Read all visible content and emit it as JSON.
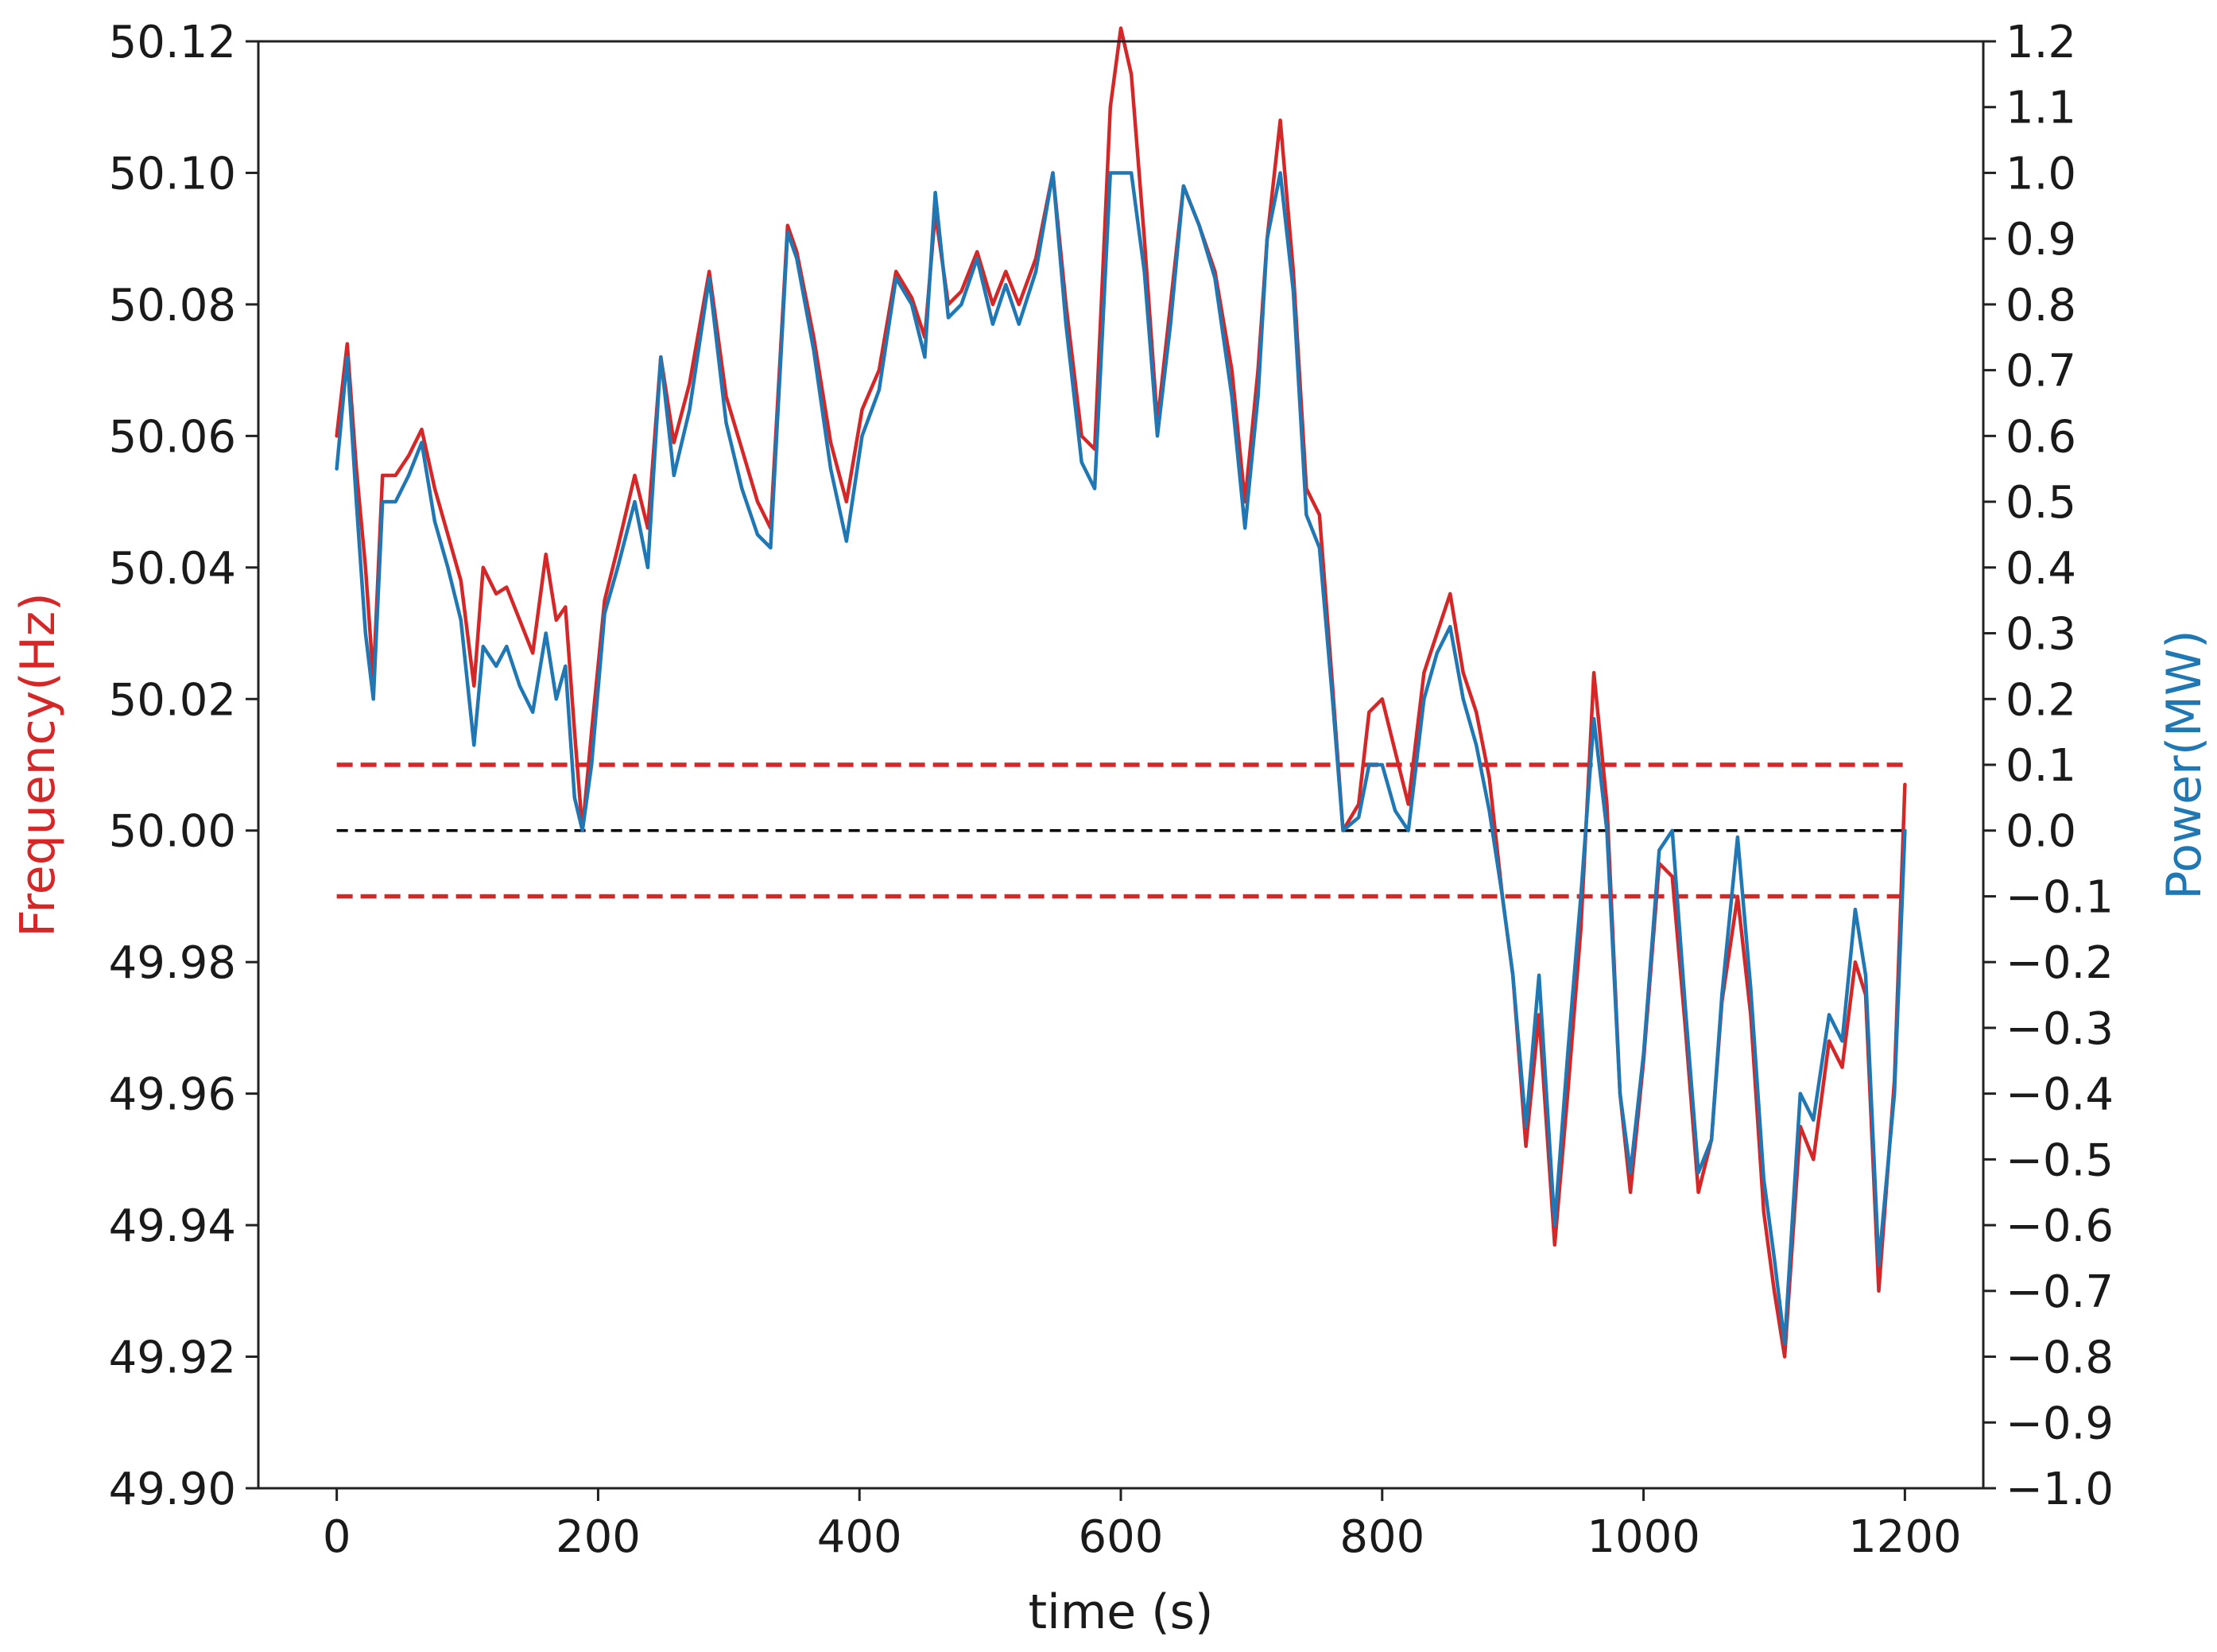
{
  "chart_data": {
    "type": "line",
    "xlabel": "time (s)",
    "ylabel_left": "Frequency(Hz)",
    "ylabel_right": "Power(MW)",
    "xlim": [
      -60,
      1260
    ],
    "ylim_left": [
      49.9,
      50.12
    ],
    "ylim_right": [
      -1.0,
      1.2
    ],
    "x_ticks": [
      "0",
      "200",
      "400",
      "600",
      "800",
      "1000",
      "1200"
    ],
    "y_left_ticks": [
      "49.90",
      "49.92",
      "49.94",
      "49.96",
      "49.98",
      "50.00",
      "50.02",
      "50.04",
      "50.06",
      "50.08",
      "50.10",
      "50.12"
    ],
    "y_right_ticks": [
      "−1.0",
      "−0.9",
      "−0.8",
      "−0.7",
      "−0.6",
      "−0.5",
      "−0.4",
      "−0.3",
      "−0.2",
      "−0.1",
      "0.0",
      "0.1",
      "0.2",
      "0.3",
      "0.4",
      "0.5",
      "0.6",
      "0.7",
      "0.8",
      "0.9",
      "1.0",
      "1.1",
      "1.2"
    ],
    "grid": false,
    "colors": {
      "frequency": "#d62728",
      "power": "#1f77b4",
      "reference": "#000000",
      "left_label": "#d62728",
      "right_label": "#1f77b4"
    },
    "series": [
      {
        "axis": "left",
        "values_x": [
          0,
          8,
          15,
          22,
          28,
          35,
          45,
          55,
          65,
          75,
          85,
          95,
          105,
          112,
          122,
          130,
          140,
          150,
          160,
          168,
          175,
          182,
          188,
          195,
          205,
          215,
          228,
          238,
          248,
          258,
          270,
          285,
          298,
          310,
          322,
          332,
          345,
          352,
          365,
          378,
          390,
          402,
          415,
          428,
          440,
          450,
          458,
          468,
          478,
          490,
          502,
          512,
          522,
          535,
          548,
          558,
          570,
          580,
          592,
          600,
          608,
          618,
          628,
          638,
          648,
          660,
          672,
          685,
          695,
          705,
          712,
          722,
          732,
          742,
          752,
          762,
          770,
          782,
          790,
          800,
          810,
          820,
          832,
          842,
          852,
          862,
          872,
          882,
          892,
          900,
          910,
          920,
          932,
          942,
          952,
          962,
          972,
          982,
          990,
          1000,
          1012,
          1022,
          1032,
          1042,
          1052,
          1060,
          1072,
          1082,
          1092,
          1100,
          1108,
          1120,
          1130,
          1142,
          1152,
          1162,
          1170,
          1180,
          1192,
          1200
        ],
        "values_y": [
          50.06,
          50.074,
          50.055,
          50.04,
          50.023,
          50.054,
          50.054,
          50.057,
          50.061,
          50.052,
          50.045,
          50.038,
          50.022,
          50.04,
          50.036,
          50.037,
          50.032,
          50.027,
          50.042,
          50.032,
          50.034,
          50.015,
          50.0,
          50.015,
          50.035,
          50.043,
          50.054,
          50.046,
          50.072,
          50.059,
          50.068,
          50.085,
          50.066,
          50.058,
          50.05,
          50.046,
          50.092,
          50.088,
          50.075,
          50.059,
          50.05,
          50.064,
          50.07,
          50.085,
          50.081,
          50.075,
          50.094,
          50.08,
          50.082,
          50.088,
          50.08,
          50.085,
          50.08,
          50.087,
          50.1,
          50.08,
          50.06,
          50.058,
          50.11,
          50.122,
          50.115,
          50.09,
          50.062,
          50.08,
          50.098,
          50.092,
          50.085,
          50.07,
          50.05,
          50.07,
          50.09,
          50.108,
          50.085,
          50.052,
          50.048,
          50.022,
          50.0,
          50.004,
          50.018,
          50.02,
          50.012,
          50.004,
          50.024,
          50.03,
          50.036,
          50.024,
          50.018,
          50.008,
          49.99,
          49.978,
          49.952,
          49.972,
          49.937,
          49.96,
          49.985,
          50.024,
          50.004,
          49.96,
          49.945,
          49.965,
          49.995,
          49.993,
          49.97,
          49.945,
          49.953,
          49.974,
          49.99,
          49.972,
          49.942,
          49.93,
          49.92,
          49.955,
          49.95,
          49.968,
          49.964,
          49.98,
          49.975,
          49.93,
          49.962,
          50.007
        ]
      },
      {
        "axis": "right",
        "values_x": [
          0,
          8,
          15,
          22,
          28,
          35,
          45,
          55,
          65,
          75,
          85,
          95,
          105,
          112,
          122,
          130,
          140,
          150,
          160,
          168,
          175,
          182,
          188,
          195,
          205,
          215,
          228,
          238,
          248,
          258,
          270,
          285,
          298,
          310,
          322,
          332,
          345,
          352,
          365,
          378,
          390,
          402,
          415,
          428,
          440,
          450,
          458,
          468,
          478,
          490,
          502,
          512,
          522,
          535,
          548,
          558,
          570,
          580,
          592,
          600,
          608,
          618,
          628,
          638,
          648,
          660,
          672,
          685,
          695,
          705,
          712,
          722,
          732,
          742,
          752,
          762,
          770,
          782,
          790,
          800,
          810,
          820,
          832,
          842,
          852,
          862,
          872,
          882,
          892,
          900,
          910,
          920,
          932,
          942,
          952,
          962,
          972,
          982,
          990,
          1000,
          1012,
          1022,
          1032,
          1042,
          1052,
          1060,
          1072,
          1082,
          1092,
          1100,
          1108,
          1120,
          1130,
          1142,
          1152,
          1162,
          1170,
          1180,
          1192,
          1200
        ],
        "values_y": [
          0.55,
          0.72,
          0.5,
          0.3,
          0.2,
          0.5,
          0.5,
          0.54,
          0.59,
          0.47,
          0.4,
          0.32,
          0.13,
          0.28,
          0.25,
          0.28,
          0.22,
          0.18,
          0.3,
          0.2,
          0.25,
          0.05,
          0.0,
          0.1,
          0.33,
          0.4,
          0.5,
          0.4,
          0.72,
          0.54,
          0.64,
          0.84,
          0.62,
          0.52,
          0.45,
          0.43,
          0.91,
          0.87,
          0.73,
          0.55,
          0.44,
          0.6,
          0.67,
          0.84,
          0.8,
          0.72,
          0.97,
          0.78,
          0.8,
          0.87,
          0.77,
          0.83,
          0.77,
          0.85,
          1.0,
          0.77,
          0.56,
          0.52,
          1.0,
          1.0,
          1.0,
          0.85,
          0.6,
          0.77,
          0.98,
          0.92,
          0.84,
          0.66,
          0.46,
          0.66,
          0.9,
          1.0,
          0.82,
          0.48,
          0.43,
          0.2,
          0.0,
          0.02,
          0.1,
          0.1,
          0.03,
          0.0,
          0.2,
          0.27,
          0.31,
          0.2,
          0.13,
          0.03,
          -0.1,
          -0.22,
          -0.45,
          -0.22,
          -0.6,
          -0.34,
          -0.1,
          0.17,
          0.0,
          -0.4,
          -0.52,
          -0.34,
          -0.03,
          0.0,
          -0.27,
          -0.52,
          -0.47,
          -0.25,
          -0.01,
          -0.24,
          -0.53,
          -0.65,
          -0.78,
          -0.4,
          -0.44,
          -0.28,
          -0.32,
          -0.12,
          -0.22,
          -0.66,
          -0.4,
          0.0
        ]
      }
    ],
    "reference_lines": [
      {
        "axis": "left",
        "y": 50.01,
        "style": "dashed",
        "color": "#d62728",
        "x_start": 0,
        "x_end": 1200
      },
      {
        "axis": "left",
        "y": 50.0,
        "style": "dashed",
        "color": "#000000",
        "x_start": 0,
        "x_end": 1200
      },
      {
        "axis": "left",
        "y": 49.99,
        "style": "dashed",
        "color": "#d62728",
        "x_start": 0,
        "x_end": 1200
      }
    ]
  }
}
